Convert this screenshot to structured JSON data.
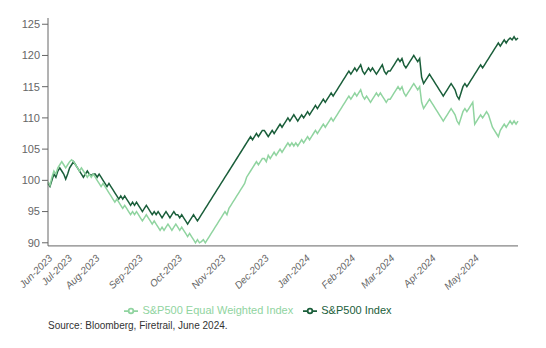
{
  "chart_data": {
    "type": "line",
    "categories": [
      "Jun-2023",
      null,
      null,
      null,
      null,
      null,
      null,
      null,
      null,
      null,
      "Jul-2023",
      null,
      null,
      null,
      null,
      null,
      null,
      null,
      null,
      null,
      null,
      null,
      null,
      null,
      "Aug-2023",
      null,
      null,
      null,
      null,
      null,
      null,
      null,
      null,
      null,
      null,
      null,
      null,
      null,
      null,
      null,
      null,
      null,
      null,
      null,
      null,
      null,
      "Sep-2023",
      null,
      null,
      null,
      null,
      null,
      null,
      null,
      null,
      null,
      null,
      null,
      null,
      null,
      null,
      null,
      null,
      null,
      null,
      null,
      "Oct-2023",
      null,
      null,
      null,
      null,
      null,
      null,
      null,
      null,
      null,
      null,
      null,
      null,
      null,
      null,
      null,
      null,
      null,
      null,
      null,
      null,
      null,
      "Nov-2023",
      null,
      null,
      null,
      null,
      null,
      null,
      null,
      null,
      null,
      null,
      null,
      null,
      null,
      null,
      null,
      null,
      null,
      null,
      null,
      null,
      null,
      "Dec-2023",
      null,
      null,
      null,
      null,
      null,
      null,
      null,
      null,
      null,
      null,
      null,
      null,
      null,
      null,
      null,
      null,
      null,
      null,
      null,
      null,
      "Jan-2024",
      null,
      null,
      null,
      null,
      null,
      null,
      null,
      null,
      null,
      null,
      null,
      null,
      null,
      null,
      null,
      null,
      null,
      null,
      null,
      null,
      null,
      null,
      "Feb-2024",
      null,
      null,
      null,
      null,
      null,
      null,
      null,
      null,
      null,
      null,
      null,
      null,
      null,
      null,
      null,
      null,
      null,
      null,
      null,
      "Mar-2024",
      null,
      null,
      null,
      null,
      null,
      null,
      null,
      null,
      null,
      null,
      null,
      null,
      null,
      null,
      null,
      null,
      null,
      null,
      null,
      null,
      "Apr-2024",
      null,
      null,
      null,
      null,
      null,
      null,
      null,
      null,
      null,
      null,
      null,
      null,
      null,
      null,
      null,
      null,
      null,
      null,
      null,
      null,
      null,
      "May-2024",
      null,
      null,
      null,
      null,
      null,
      null,
      null,
      null,
      null,
      null,
      null,
      null,
      null,
      null,
      null,
      null,
      null,
      null,
      null,
      null,
      null,
      null
    ],
    "series": [
      {
        "name": "S&P500 Index",
        "color": "#1a5e3a",
        "values": [
          99.5,
          99.0,
          100.0,
          101.0,
          100.5,
          101.5,
          102.0,
          101.5,
          101.0,
          100.2,
          101.0,
          102.0,
          102.5,
          103.0,
          102.5,
          102.0,
          101.5,
          101.0,
          100.5,
          101.0,
          101.5,
          101.0,
          100.8,
          101.0,
          101.0,
          100.5,
          101.0,
          100.5,
          100.0,
          99.5,
          99.0,
          99.5,
          99.0,
          98.5,
          98.0,
          97.5,
          97.0,
          97.5,
          97.0,
          97.5,
          97.0,
          96.5,
          96.0,
          96.5,
          96.0,
          96.5,
          96.0,
          95.5,
          95.0,
          95.5,
          96.0,
          95.5,
          95.0,
          94.5,
          95.0,
          94.5,
          95.0,
          94.5,
          94.0,
          94.5,
          95.0,
          94.5,
          94.0,
          94.5,
          95.0,
          94.5,
          94.5,
          94.0,
          94.5,
          94.0,
          93.5,
          93.0,
          93.5,
          94.0,
          94.5,
          94.0,
          93.5,
          94.0,
          94.5,
          95.0,
          95.5,
          96.0,
          96.5,
          97.0,
          97.5,
          98.0,
          98.5,
          99.0,
          99.5,
          100.0,
          100.5,
          101.0,
          101.5,
          102.0,
          102.5,
          103.0,
          103.5,
          104.0,
          104.5,
          105.0,
          105.5,
          106.0,
          106.5,
          107.0,
          106.5,
          107.0,
          107.5,
          107.0,
          107.5,
          108.0,
          108.0,
          107.5,
          107.0,
          107.5,
          108.0,
          107.5,
          108.0,
          108.5,
          109.0,
          108.5,
          109.0,
          109.5,
          110.0,
          109.5,
          110.0,
          110.5,
          110.0,
          109.5,
          110.0,
          110.5,
          110.0,
          110.5,
          111.0,
          110.5,
          111.0,
          111.5,
          112.0,
          111.5,
          112.0,
          112.5,
          113.0,
          112.5,
          113.0,
          113.5,
          114.0,
          113.5,
          114.0,
          114.5,
          115.0,
          115.5,
          116.0,
          116.5,
          117.0,
          117.5,
          117.0,
          117.5,
          118.0,
          117.5,
          118.0,
          118.5,
          117.5,
          117.0,
          117.5,
          118.0,
          117.5,
          118.0,
          117.5,
          117.0,
          117.5,
          118.0,
          118.5,
          117.5,
          117.0,
          117.5,
          117.5,
          118.0,
          118.5,
          119.0,
          119.5,
          119.0,
          119.5,
          118.5,
          118.0,
          118.5,
          119.0,
          119.5,
          120.0,
          119.5,
          119.0,
          119.5,
          116.5,
          115.5,
          116.0,
          116.5,
          117.0,
          116.5,
          116.0,
          115.5,
          115.0,
          114.5,
          114.0,
          113.5,
          114.0,
          114.5,
          115.0,
          115.5,
          115.0,
          114.5,
          113.5,
          113.0,
          114.0,
          115.0,
          115.5,
          115.0,
          115.5,
          116.0,
          116.5,
          117.0,
          117.5,
          118.0,
          118.5,
          118.0,
          118.5,
          119.0,
          119.5,
          120.0,
          120.5,
          121.0,
          121.5,
          122.0,
          121.5,
          122.0,
          122.5,
          122.0,
          122.5,
          122.8,
          122.5,
          123.0,
          122.5,
          122.8
        ]
      },
      {
        "name": "S&P500 Equal Weighted Index",
        "color": "#90d4a0",
        "values": [
          99.8,
          99.2,
          100.5,
          101.5,
          101.0,
          102.0,
          102.5,
          103.0,
          102.5,
          102.0,
          102.5,
          103.0,
          103.3,
          103.0,
          102.5,
          102.0,
          101.5,
          102.0,
          101.5,
          101.0,
          100.5,
          101.0,
          100.5,
          101.0,
          100.5,
          100.0,
          99.5,
          99.0,
          99.5,
          99.0,
          98.5,
          98.0,
          97.5,
          97.0,
          96.5,
          97.0,
          96.5,
          96.0,
          95.5,
          96.0,
          95.5,
          95.0,
          94.5,
          95.0,
          94.5,
          95.0,
          94.5,
          94.0,
          93.5,
          94.0,
          94.5,
          94.0,
          93.5,
          93.0,
          93.5,
          93.0,
          92.5,
          92.0,
          92.5,
          92.0,
          92.5,
          93.0,
          92.5,
          92.0,
          92.5,
          93.0,
          92.5,
          92.0,
          92.5,
          92.0,
          91.5,
          91.0,
          91.5,
          91.0,
          90.5,
          90.0,
          90.5,
          90.0,
          90.2,
          90.5,
          90.0,
          90.5,
          91.0,
          91.5,
          92.0,
          92.5,
          93.0,
          93.5,
          94.0,
          94.5,
          95.0,
          94.5,
          95.5,
          96.0,
          96.5,
          97.0,
          97.5,
          98.0,
          98.5,
          99.0,
          99.5,
          100.5,
          101.0,
          101.5,
          102.0,
          102.5,
          103.0,
          102.5,
          103.0,
          103.5,
          103.5,
          103.0,
          104.0,
          103.5,
          104.0,
          104.5,
          104.0,
          104.5,
          105.0,
          104.5,
          105.0,
          105.5,
          106.0,
          105.5,
          106.0,
          105.5,
          106.0,
          105.5,
          106.0,
          106.5,
          106.0,
          106.5,
          107.0,
          106.5,
          107.0,
          107.5,
          108.0,
          107.5,
          108.0,
          108.5,
          109.0,
          108.5,
          109.0,
          109.5,
          110.0,
          109.5,
          110.0,
          110.5,
          111.0,
          111.5,
          112.0,
          112.5,
          113.0,
          113.5,
          113.0,
          113.5,
          114.0,
          113.5,
          114.0,
          114.5,
          113.5,
          113.0,
          113.5,
          113.0,
          112.5,
          113.0,
          113.5,
          114.0,
          113.5,
          114.0,
          113.5,
          113.0,
          112.5,
          113.0,
          113.0,
          113.5,
          114.0,
          114.5,
          115.0,
          114.5,
          115.0,
          114.0,
          113.5,
          114.0,
          114.5,
          115.0,
          115.5,
          115.0,
          114.5,
          115.0,
          112.5,
          111.5,
          112.0,
          112.5,
          113.0,
          112.5,
          112.0,
          111.5,
          111.0,
          110.5,
          110.0,
          109.5,
          110.0,
          110.5,
          111.0,
          111.5,
          111.0,
          110.5,
          109.5,
          109.0,
          110.0,
          111.0,
          111.5,
          111.0,
          111.5,
          112.0,
          112.5,
          109.0,
          109.5,
          110.0,
          110.5,
          110.0,
          110.5,
          111.0,
          110.5,
          109.5,
          108.5,
          108.0,
          107.5,
          107.0,
          108.0,
          108.5,
          109.0,
          108.5,
          109.0,
          109.5,
          109.0,
          109.5,
          109.0,
          109.5
        ]
      }
    ],
    "ylim": [
      89.5,
      126
    ],
    "yticks": [
      90,
      95,
      100,
      105,
      110,
      115,
      120,
      125
    ],
    "grid": false,
    "legend": "bottom",
    "annotations": [
      "Source: Bloomberg, Firetrail, June 2024."
    ]
  }
}
